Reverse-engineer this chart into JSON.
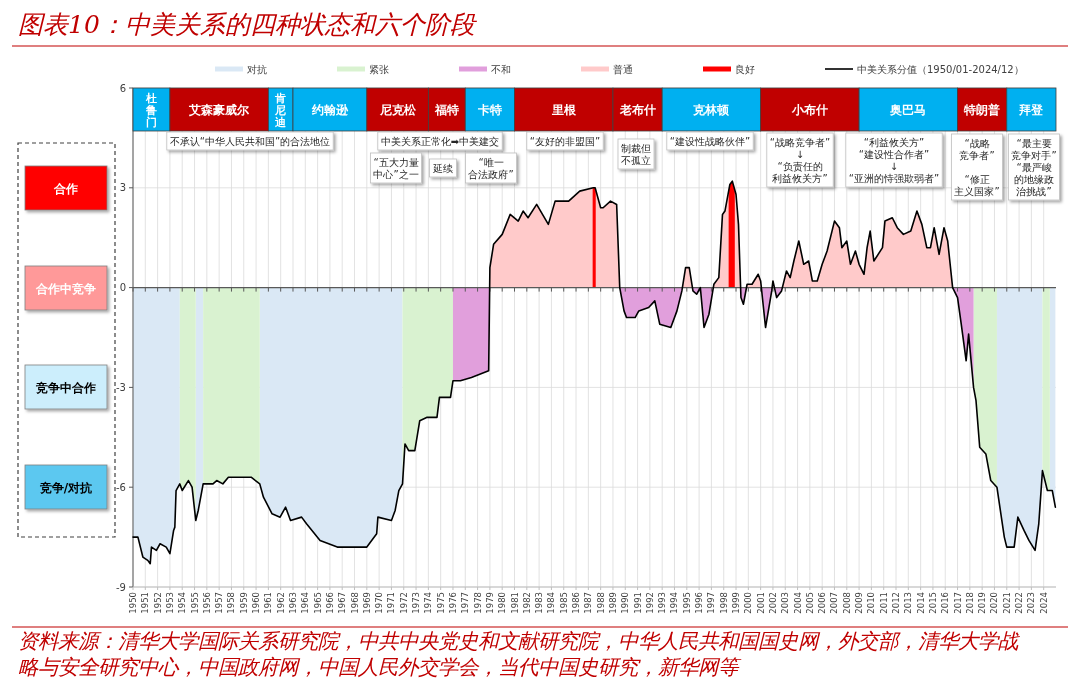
{
  "chart_data": {
    "type": "line",
    "title": "图表10：中美关系的四种状态和六个阶段",
    "xlim": [
      1950,
      2025
    ],
    "ylim": [
      -9,
      6
    ],
    "xticks": [
      1950,
      1951,
      1952,
      1953,
      1954,
      1955,
      1956,
      1957,
      1958,
      1959,
      1960,
      1961,
      1962,
      1963,
      1964,
      1965,
      1966,
      1967,
      1968,
      1969,
      1970,
      1971,
      1972,
      1973,
      1974,
      1975,
      1976,
      1977,
      1978,
      1979,
      1980,
      1981,
      1982,
      1983,
      1984,
      1985,
      1986,
      1987,
      1988,
      1989,
      1990,
      1991,
      1992,
      1993,
      1994,
      1995,
      1996,
      1997,
      1998,
      1999,
      2000,
      2001,
      2002,
      2003,
      2004,
      2005,
      2006,
      2007,
      2008,
      2009,
      2010,
      2011,
      2012,
      2013,
      2014,
      2015,
      2016,
      2017,
      2018,
      2019,
      2020,
      2021,
      2022,
      2023,
      2024
    ],
    "yticks": [
      -9,
      -6,
      -3,
      0,
      3,
      6
    ],
    "grid": true,
    "legend": "top",
    "series": [
      {
        "name": "对抗",
        "type": "area",
        "color": "#dae8f5",
        "x": [
          1950.0,
          1950.4,
          1950.8,
          1951.2,
          1951.4,
          1951.5,
          1951.9,
          1952.2,
          1952.7,
          1953.0,
          1953.3,
          1953.4,
          1953.5,
          1953.8,
          1953.8,
          1955.1,
          1955.1,
          1955.3,
          1955.7,
          1955.7,
          1960.3,
          1960.3,
          1960.6,
          1961.3,
          1961.95,
          1962.4,
          1962.8,
          1963.7,
          1964.1,
          1965.2,
          1966.6,
          1969.0,
          1969.8,
          1969.9,
          1971.0,
          1971.3,
          1971.6,
          1971.9,
          1971.9,
          2020.2,
          2020.2,
          2020.8,
          2021.0,
          2021.6,
          2021.9,
          2022.4,
          2022.8,
          2023.3,
          2023.6,
          2023.9,
          2023.9,
          2024.5,
          2024.5,
          2024.7,
          2024.95
        ],
        "values": [
          -7.5,
          -7.5,
          -8.1,
          -8.2,
          -8.3,
          -7.8,
          -7.9,
          -7.7,
          -7.8,
          -8.0,
          -7.3,
          -7.2,
          -6.1,
          -5.9,
          0,
          0,
          -7.0,
          -6.7,
          -5.9,
          0,
          0,
          -5.9,
          -6.3,
          -6.8,
          -6.9,
          -6.6,
          -7.0,
          -6.9,
          -7.1,
          -7.6,
          -7.8,
          -7.8,
          -7.4,
          -6.9,
          -7.0,
          -6.7,
          -6.1,
          -5.9,
          0,
          0,
          -6.0,
          -7.5,
          -7.8,
          -7.8,
          -6.9,
          -7.3,
          -7.6,
          -7.9,
          -7.1,
          -5.5,
          0,
          0,
          -6.1,
          -6.1,
          -6.6
        ]
      },
      {
        "name": "紧张",
        "type": "area",
        "color": "#d9f2d0",
        "x": [
          1953.8,
          1954.0,
          1954.5,
          1954.8,
          1955.1,
          1955.1,
          1955.7,
          1955.7,
          1956.5,
          1956.8,
          1957.3,
          1957.75,
          1959.6,
          1960.3,
          1960.3,
          1971.9,
          1971.9,
          1972.1,
          1972.4,
          1972.9,
          1973.3,
          1973.9,
          1974.7,
          1974.9,
          1975.8,
          1976.0,
          1976.0,
          2018.3,
          2018.3,
          2018.5,
          2018.8,
          2019.3,
          2019.7,
          2020.2,
          2020.2,
          2023.9,
          2023.9,
          2024.3,
          2024.5
        ],
        "values": [
          -5.9,
          -6.1,
          -5.8,
          -6.0,
          -7.0,
          0,
          0,
          -5.9,
          -5.9,
          -5.8,
          -5.9,
          -5.7,
          -5.7,
          -5.9,
          0,
          0,
          -5.9,
          -4.7,
          -4.9,
          -4.9,
          -4.0,
          -3.9,
          -3.9,
          -3.3,
          -3.3,
          -2.8,
          0,
          0,
          -3.0,
          -3.4,
          -4.8,
          -5.0,
          -5.8,
          -6.0,
          0,
          0,
          -5.5,
          -6.1,
          -6.1
        ]
      },
      {
        "name": "不和",
        "type": "area",
        "color": "#e19fdc",
        "x": [
          1976.0,
          1976.6,
          1977.5,
          1978.9,
          1978.98,
          1989.55,
          1989.9,
          1990.1,
          1990.8,
          1991.1,
          1991.9,
          1992.4,
          1992.8,
          1993.7,
          1994.2,
          1994.6,
          1994.64,
          1995.45,
          1995.5,
          1995.8,
          1996.1,
          1996.4,
          1996.8,
          1997.15,
          1999.37,
          1999.4,
          1999.6,
          1999.85,
          2001.06,
          2001.4,
          2001.9,
          2002.0,
          2002.3,
          2002.7,
          2002.8,
          2016.6,
          2017.0,
          2017.3,
          2017.7,
          2017.9,
          2018.3
        ],
        "values": [
          -2.8,
          -2.8,
          -2.7,
          -2.5,
          0,
          0.0,
          -0.7,
          -0.9,
          -0.9,
          -0.7,
          -0.6,
          -0.4,
          -1.1,
          -1.2,
          -0.7,
          -0.1,
          0,
          0,
          -0.1,
          -0.2,
          0.0,
          -1.2,
          -0.8,
          0,
          0,
          -0.3,
          -0.5,
          0,
          0,
          -1.2,
          -0.1,
          0.2,
          -0.3,
          -0.1,
          0,
          0.0,
          -0.3,
          -1.1,
          -2.2,
          -1.4,
          -3.0
        ]
      },
      {
        "name": "普通",
        "type": "area",
        "color": "#ffcaca",
        "x": [
          1978.98,
          1979.0,
          1979.3,
          1980.0,
          1980.65,
          1981.3,
          1981.7,
          1982.1,
          1982.8,
          1983.75,
          1984.3,
          1985.4,
          1986.3,
          1987.4,
          1987.55,
          1988.0,
          1988.2,
          1988.8,
          1989.3,
          1989.55,
          1994.64,
          1994.9,
          1995.2,
          1995.45,
          1997.15,
          1997.2,
          1997.6,
          1997.9,
          1998.1,
          1998.5,
          1998.7,
          1999.0,
          1999.2,
          1999.37,
          1999.85,
          1999.9,
          2000.3,
          2000.8,
          2001.0,
          2001.06,
          2002.8,
          2003.1,
          2003.4,
          2003.7,
          2004.1,
          2004.5,
          2004.9,
          2005.2,
          2005.6,
          2006.0,
          2006.4,
          2007.0,
          2007.4,
          2007.6,
          2008.0,
          2008.3,
          2008.7,
          2009.0,
          2009.4,
          2009.65,
          2009.9,
          2010.2,
          2010.9,
          2011.1,
          2011.7,
          2012.1,
          2012.6,
          2013.2,
          2013.7,
          2014.1,
          2014.5,
          2014.8,
          2015.1,
          2015.5,
          2015.9,
          2016.2,
          2016.6
        ],
        "values": [
          0,
          0.6,
          1.3,
          1.6,
          2.2,
          2.0,
          2.3,
          2.1,
          2.5,
          1.9,
          2.6,
          2.6,
          2.9,
          3.0,
          3.0,
          2.4,
          2.4,
          2.6,
          2.5,
          0.0,
          0,
          0.6,
          0.6,
          0,
          0,
          0.1,
          0.3,
          2.2,
          2.3,
          3.1,
          3.2,
          2.8,
          1.9,
          0,
          0,
          0.1,
          0.1,
          0.4,
          0.2,
          0,
          0,
          0.5,
          0.3,
          0.8,
          1.4,
          0.7,
          0.8,
          0.2,
          0.2,
          0.7,
          1.1,
          2.0,
          1.8,
          1.2,
          1.4,
          0.7,
          1.1,
          0.7,
          0.4,
          1.2,
          1.7,
          0.8,
          1.2,
          2.0,
          2.1,
          1.8,
          1.6,
          1.7,
          2.3,
          1.9,
          1.2,
          1.2,
          1.8,
          1.0,
          1.8,
          1.4,
          0.0
        ]
      },
      {
        "name": "良好",
        "type": "area",
        "color": "#ff0000",
        "x": [
          1987.35,
          1987.4,
          1987.55,
          1987.6,
          1987.6,
          1998.4,
          1998.4,
          1998.5,
          1998.7,
          1998.9
        ],
        "values": [
          3.0,
          3.0,
          3.0,
          2.9,
          0,
          0,
          2.9,
          3.1,
          3.2,
          2.9
        ]
      },
      {
        "name": "中美关系分值（1950/01-2024/12）",
        "type": "line",
        "color": "#000000",
        "x": [
          1950.0,
          1950.4,
          1950.8,
          1951.2,
          1951.4,
          1951.5,
          1951.9,
          1952.2,
          1952.7,
          1953.0,
          1953.3,
          1953.4,
          1953.5,
          1953.8,
          1954.0,
          1954.5,
          1954.8,
          1955.1,
          1955.3,
          1955.7,
          1956.5,
          1956.8,
          1957.3,
          1957.75,
          1959.6,
          1960.3,
          1960.6,
          1961.3,
          1961.95,
          1962.4,
          1962.8,
          1963.7,
          1964.1,
          1965.2,
          1966.6,
          1969.0,
          1969.8,
          1969.9,
          1971.0,
          1971.3,
          1971.6,
          1971.9,
          1972.1,
          1972.4,
          1972.9,
          1973.3,
          1973.9,
          1974.7,
          1974.9,
          1975.8,
          1976.0,
          1976.6,
          1977.5,
          1978.9,
          1979.0,
          1979.3,
          1980.0,
          1980.65,
          1981.3,
          1981.7,
          1982.1,
          1982.8,
          1983.75,
          1984.3,
          1985.4,
          1986.3,
          1987.4,
          1987.55,
          1988.0,
          1988.2,
          1988.8,
          1989.3,
          1989.55,
          1989.9,
          1990.1,
          1990.8,
          1991.1,
          1991.9,
          1992.4,
          1992.8,
          1993.7,
          1994.2,
          1994.6,
          1994.9,
          1995.2,
          1995.5,
          1995.8,
          1996.1,
          1996.4,
          1996.8,
          1997.2,
          1997.6,
          1997.9,
          1998.1,
          1998.5,
          1998.7,
          1999.0,
          1999.2,
          1999.4,
          1999.6,
          1999.9,
          2000.3,
          2000.8,
          2001.0,
          2001.4,
          2001.9,
          2002.0,
          2002.3,
          2002.7,
          2003.1,
          2003.4,
          2003.7,
          2004.1,
          2004.5,
          2004.9,
          2005.2,
          2005.6,
          2006.0,
          2006.4,
          2007.0,
          2007.4,
          2007.6,
          2008.0,
          2008.3,
          2008.7,
          2009.0,
          2009.4,
          2009.65,
          2009.9,
          2010.2,
          2010.9,
          2011.1,
          2011.7,
          2012.1,
          2012.6,
          2013.2,
          2013.7,
          2014.1,
          2014.5,
          2014.8,
          2015.1,
          2015.5,
          2015.9,
          2016.2,
          2016.6,
          2017.0,
          2017.3,
          2017.7,
          2017.9,
          2018.3,
          2018.5,
          2018.8,
          2019.3,
          2019.7,
          2020.2,
          2020.8,
          2021.0,
          2021.6,
          2021.9,
          2022.4,
          2022.8,
          2023.3,
          2023.6,
          2023.9,
          2024.3,
          2024.7,
          2024.95
        ],
        "values": [
          -7.5,
          -7.5,
          -8.1,
          -8.2,
          -8.3,
          -7.8,
          -7.9,
          -7.7,
          -7.8,
          -8.0,
          -7.3,
          -7.2,
          -6.1,
          -5.9,
          -6.1,
          -5.8,
          -6.0,
          -7.0,
          -6.7,
          -5.9,
          -5.9,
          -5.8,
          -5.9,
          -5.7,
          -5.7,
          -5.9,
          -6.3,
          -6.8,
          -6.9,
          -6.6,
          -7.0,
          -6.9,
          -7.1,
          -7.6,
          -7.8,
          -7.8,
          -7.4,
          -6.9,
          -7.0,
          -6.7,
          -6.1,
          -5.9,
          -4.7,
          -4.9,
          -4.9,
          -4.0,
          -3.9,
          -3.9,
          -3.3,
          -3.3,
          -2.8,
          -2.8,
          -2.7,
          -2.5,
          0.6,
          1.3,
          1.6,
          2.2,
          2.0,
          2.3,
          2.1,
          2.5,
          1.9,
          2.6,
          2.6,
          2.9,
          3.0,
          3.0,
          2.4,
          2.4,
          2.6,
          2.5,
          0.0,
          -0.7,
          -0.9,
          -0.9,
          -0.7,
          -0.6,
          -0.4,
          -1.1,
          -1.2,
          -0.7,
          -0.1,
          0.6,
          0.6,
          -0.1,
          -0.2,
          0.0,
          -1.2,
          -0.8,
          0.1,
          0.3,
          2.2,
          2.3,
          3.1,
          3.2,
          2.8,
          1.9,
          -0.3,
          -0.5,
          0.1,
          0.1,
          0.4,
          0.2,
          -1.2,
          -0.1,
          0.2,
          -0.3,
          -0.1,
          0.5,
          0.3,
          0.8,
          1.4,
          0.7,
          0.8,
          0.2,
          0.2,
          0.7,
          1.1,
          2.0,
          1.8,
          1.2,
          1.4,
          0.7,
          1.1,
          0.7,
          0.4,
          1.2,
          1.7,
          0.8,
          1.2,
          2.0,
          2.1,
          1.8,
          1.6,
          1.7,
          2.3,
          1.9,
          1.2,
          1.2,
          1.8,
          1.0,
          1.8,
          1.4,
          0.0,
          -0.3,
          -1.1,
          -2.2,
          -1.4,
          -3.0,
          -3.4,
          -4.8,
          -5.0,
          -5.8,
          -6.0,
          -7.5,
          -7.8,
          -7.8,
          -6.9,
          -7.3,
          -7.6,
          -7.9,
          -7.1,
          -5.5,
          -6.1,
          -6.1,
          -6.6
        ]
      }
    ],
    "bands": [
      {
        "axis": "x",
        "from": 1950,
        "to": 1953,
        "label": "杜鲁门",
        "color": "#00b0f0"
      },
      {
        "axis": "x",
        "from": 1953,
        "to": 1961,
        "label": "艾森豪威尔",
        "color": "#c00000"
      },
      {
        "axis": "x",
        "from": 1961,
        "to": 1963,
        "label": "肯尼迪",
        "color": "#00b0f0"
      },
      {
        "axis": "x",
        "from": 1963,
        "to": 1969,
        "label": "约翰逊",
        "color": "#00b0f0"
      },
      {
        "axis": "x",
        "from": 1969,
        "to": 1974,
        "label": "尼克松",
        "color": "#c00000"
      },
      {
        "axis": "x",
        "from": 1974,
        "to": 1977,
        "label": "福特",
        "color": "#c00000"
      },
      {
        "axis": "x",
        "from": 1977,
        "to": 1981,
        "label": "卡特",
        "color": "#00b0f0"
      },
      {
        "axis": "x",
        "from": 1981,
        "to": 1989,
        "label": "里根",
        "color": "#c00000"
      },
      {
        "axis": "x",
        "from": 1989,
        "to": 1993,
        "label": "老布什",
        "color": "#c00000"
      },
      {
        "axis": "x",
        "from": 1993,
        "to": 2001,
        "label": "克林顿",
        "color": "#00b0f0"
      },
      {
        "axis": "x",
        "from": 2001,
        "to": 2009,
        "label": "小布什",
        "color": "#c00000"
      },
      {
        "axis": "x",
        "from": 2009,
        "to": 2017,
        "label": "奥巴马",
        "color": "#00b0f0"
      },
      {
        "axis": "x",
        "from": 2017,
        "to": 2021,
        "label": "特朗普",
        "color": "#c00000"
      },
      {
        "axis": "x",
        "from": 2021,
        "to": 2025,
        "label": "拜登",
        "color": "#00b0f0"
      }
    ],
    "annotations": [
      "不承认“中华人民共和国”的合法地位",
      "中美关系正常化➡中美建交",
      "“五大力量中心”之一",
      "延续",
      "“唯一合法政府”",
      "“友好的非盟国”",
      "制裁但不孤立",
      "“建设性战略伙伴”",
      "“战略竞争者”↓“负责任的利益攸关方”",
      "“利益攸关方”“建设性合作者”↓“亚洲的恃强欺弱者”",
      "“战略竞争者”“修正主义国家”",
      "“最主要竞争对手”“最严峻的地缘政治挑战”",
      "合作",
      "合作中竞争",
      "竞争中合作",
      "竞争/对抗",
      "资料来源：清华大学国际关系研究院，中共中央党史和文献研究院，中华人民共和国国史网，外交部，清华大学战略与安全研究中心，中国政府网，中国人民外交学会，当代中国史研究，新华网等"
    ]
  }
}
